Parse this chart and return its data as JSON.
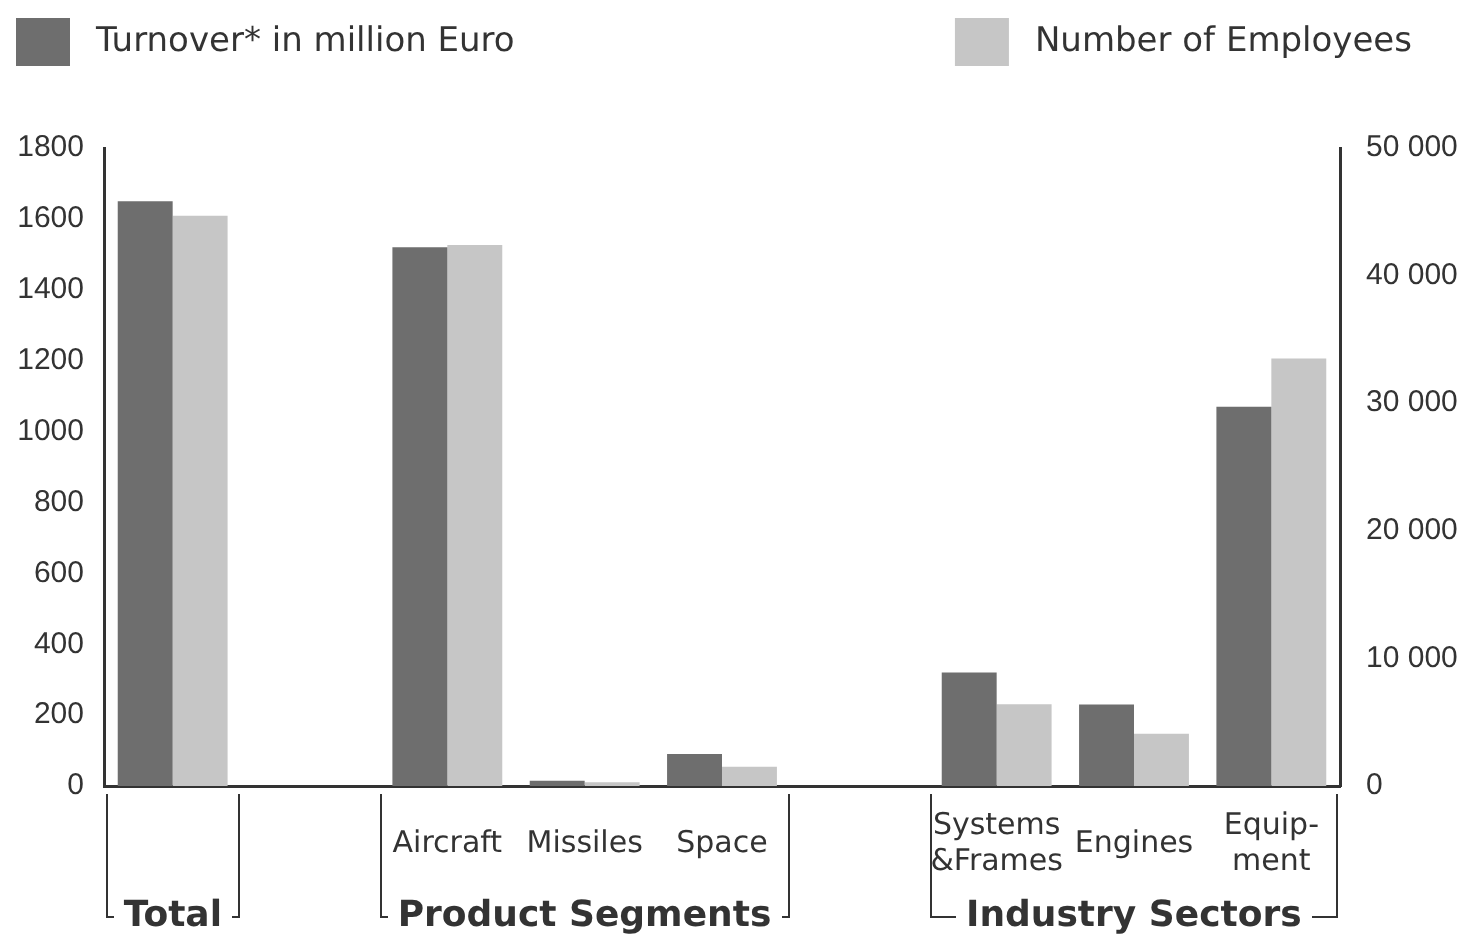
{
  "chart_data": {
    "type": "bar",
    "categories": [
      null,
      null,
      "Aircraft",
      "Missiles",
      "Space",
      null,
      "Systems\n&Frames",
      "Engines",
      "Equip-\nment"
    ],
    "series": [
      {
        "name": "Turnover* in million Euro",
        "color": "#6e6e6e",
        "values": [
          1650,
          null,
          1520,
          15,
          90,
          null,
          320,
          230,
          1070
        ]
      },
      {
        "name": "Number of Employees",
        "color": "#c6c6c6",
        "axis": "y2",
        "values": [
          44700,
          null,
          42400,
          300,
          1500,
          null,
          6400,
          4100,
          33500
        ]
      }
    ],
    "ylim": [
      0,
      1800
    ],
    "yticks": [
      0,
      200,
      400,
      600,
      800,
      1000,
      1200,
      1400,
      1600,
      1800
    ],
    "y2lim": [
      0,
      50000
    ],
    "y2ticks": [
      0,
      {
        "value": 10000,
        "label": "10 000"
      },
      {
        "value": 20000,
        "label": "20 000"
      },
      {
        "value": 30000,
        "label": "30 000"
      },
      {
        "value": 40000,
        "label": "40 000"
      },
      {
        "value": 50000,
        "label": "50 000"
      }
    ],
    "annotations": [
      "Total",
      "Product Segments",
      "Industry Sectors"
    ],
    "legend": "top"
  }
}
